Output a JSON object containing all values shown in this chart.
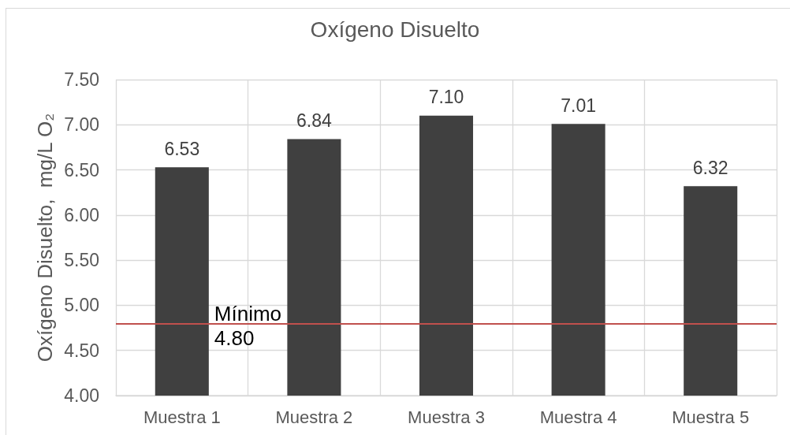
{
  "chart_data": {
    "type": "bar",
    "title": "Oxígeno Disuelto",
    "ylabel": "Oxígeno Disuelto,  mg/L O₂",
    "categories": [
      "Muestra 1",
      "Muestra 2",
      "Muestra 3",
      "Muestra 4",
      "Muestra 5"
    ],
    "values": [
      6.53,
      6.84,
      7.1,
      7.01,
      6.32
    ],
    "color": "#404040",
    "value_labels": [
      "6.53",
      "6.84",
      "7.10",
      "7.01",
      "6.32"
    ],
    "ylim": [
      4,
      7.5
    ],
    "yticks": [
      {
        "value": 4,
        "label": "4.00"
      },
      {
        "value": 4.5,
        "label": "4.50"
      },
      {
        "value": 5,
        "label": "5.00"
      },
      {
        "value": 5.5,
        "label": "5.50"
      },
      {
        "value": 6,
        "label": "6.00"
      },
      {
        "value": 6.5,
        "label": "6.50"
      },
      {
        "value": 7,
        "label": "7.00"
      },
      {
        "value": 7.5,
        "label": "7.50"
      }
    ],
    "ref_lines": [
      {
        "axis": "y",
        "value": 4.8,
        "label": "Mínimo 4.80",
        "color": "#c0504d"
      }
    ],
    "grid": true
  }
}
